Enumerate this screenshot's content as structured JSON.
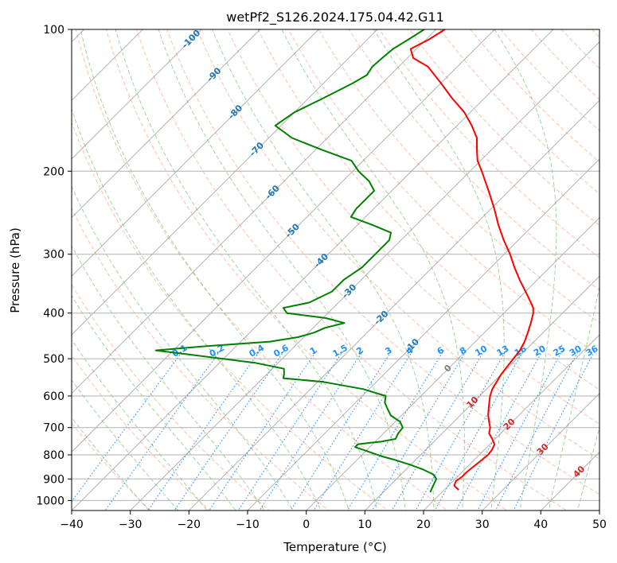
{
  "chart_data": {
    "type": "line",
    "title": "wetPf2_S126.2024.175.04.42.G11",
    "xlabel": "Temperature (°C)",
    "ylabel": "Pressure (hPa)",
    "xlim": [
      -40,
      50
    ],
    "ylim": [
      1050,
      100
    ],
    "y_scale": "log",
    "grid": true,
    "x_ticks": [
      -40,
      -30,
      -20,
      -10,
      0,
      10,
      20,
      30,
      40,
      50
    ],
    "y_ticks": [
      100,
      200,
      300,
      400,
      500,
      600,
      700,
      800,
      900,
      1000
    ],
    "skew_degrees": 45,
    "colors": {
      "temperature": "#ff0000",
      "dewpoint": "#008000",
      "dry_adiabat": "#ff7f50",
      "moist_adiabat": "#2ca02c",
      "mixing_ratio": "#1e90ff",
      "isotherm": "#808080",
      "isotherm_label_cold": "#1f77b4",
      "isotherm_label_warm": "#d62728"
    },
    "isotherm_labels": [
      {
        "t": -100,
        "p": 105,
        "text": "-100",
        "color": "#1f77b4"
      },
      {
        "t": -90,
        "p": 125,
        "text": "-90",
        "color": "#1f77b4"
      },
      {
        "t": -80,
        "p": 150,
        "text": "-80",
        "color": "#1f77b4"
      },
      {
        "t": -70,
        "p": 180,
        "text": "-70",
        "color": "#1f77b4"
      },
      {
        "t": -60,
        "p": 222,
        "text": "-60",
        "color": "#1f77b4"
      },
      {
        "t": -50,
        "p": 268,
        "text": "-50",
        "color": "#1f77b4"
      },
      {
        "t": -40,
        "p": 310,
        "text": "-40",
        "color": "#1f77b4"
      },
      {
        "t": -30,
        "p": 360,
        "text": "-30",
        "color": "#1f77b4"
      },
      {
        "t": -20,
        "p": 410,
        "text": "-20",
        "color": "#1f77b4"
      },
      {
        "t": -10,
        "p": 470,
        "text": "-10",
        "color": "#1f77b4"
      },
      {
        "t": 0,
        "p": 525,
        "text": "0",
        "color": "#808080"
      },
      {
        "t": 10,
        "p": 620,
        "text": "10",
        "color": "#d62728"
      },
      {
        "t": 20,
        "p": 690,
        "text": "20",
        "color": "#d62728"
      },
      {
        "t": 30,
        "p": 780,
        "text": "30",
        "color": "#d62728"
      },
      {
        "t": 40,
        "p": 870,
        "text": "40",
        "color": "#d62728"
      }
    ],
    "mixing_ratio_labels": [
      {
        "w": 0.1,
        "text": "0.1"
      },
      {
        "w": 0.2,
        "text": "0.2"
      },
      {
        "w": 0.4,
        "text": "0.4"
      },
      {
        "w": 0.6,
        "text": "0.6"
      },
      {
        "w": 1,
        "text": "1"
      },
      {
        "w": 1.5,
        "text": "1.5"
      },
      {
        "w": 2,
        "text": "2"
      },
      {
        "w": 3,
        "text": "3"
      },
      {
        "w": 4,
        "text": "4"
      },
      {
        "w": 6,
        "text": "6"
      },
      {
        "w": 8,
        "text": "8"
      },
      {
        "w": 10,
        "text": "10"
      },
      {
        "w": 13,
        "text": "13"
      },
      {
        "w": 16,
        "text": "16"
      },
      {
        "w": 20,
        "text": "20"
      },
      {
        "w": 25,
        "text": "25"
      },
      {
        "w": 30,
        "text": "30"
      },
      {
        "w": 36,
        "text": "36"
      }
    ],
    "series": [
      {
        "key": "temperature",
        "points": [
          [
            950,
            22.5
          ],
          [
            930,
            21.0
          ],
          [
            910,
            20.5
          ],
          [
            890,
            20.8
          ],
          [
            870,
            20.8
          ],
          [
            850,
            21.0
          ],
          [
            820,
            21.3
          ],
          [
            800,
            21.5
          ],
          [
            780,
            21.3
          ],
          [
            760,
            20.8
          ],
          [
            740,
            19.5
          ],
          [
            720,
            18.0
          ],
          [
            700,
            17.2
          ],
          [
            680,
            16.0
          ],
          [
            660,
            14.8
          ],
          [
            640,
            13.8
          ],
          [
            620,
            12.8
          ],
          [
            600,
            11.8
          ],
          [
            580,
            11.0
          ],
          [
            560,
            10.5
          ],
          [
            540,
            10.0
          ],
          [
            520,
            9.7
          ],
          [
            500,
            9.4
          ],
          [
            480,
            9.1
          ],
          [
            460,
            8.4
          ],
          [
            440,
            7.4
          ],
          [
            420,
            6.3
          ],
          [
            400,
            5.0
          ],
          [
            390,
            4.1
          ],
          [
            380,
            2.8
          ],
          [
            360,
            0.0
          ],
          [
            340,
            -3.0
          ],
          [
            320,
            -6.0
          ],
          [
            300,
            -9.0
          ],
          [
            280,
            -12.5
          ],
          [
            260,
            -16.0
          ],
          [
            240,
            -19.5
          ],
          [
            220,
            -23.5
          ],
          [
            200,
            -28.0
          ],
          [
            190,
            -30.5
          ],
          [
            180,
            -32.5
          ],
          [
            170,
            -34.5
          ],
          [
            160,
            -37.5
          ],
          [
            150,
            -41.0
          ],
          [
            140,
            -45.5
          ],
          [
            130,
            -50.0
          ],
          [
            120,
            -55.0
          ],
          [
            115,
            -59.0
          ],
          [
            110,
            -61.0
          ],
          [
            105,
            -59.5
          ],
          [
            100,
            -58.5
          ]
        ]
      },
      {
        "key": "dewpoint",
        "points": [
          [
            960,
            18.0
          ],
          [
            940,
            17.6
          ],
          [
            920,
            17.2
          ],
          [
            900,
            16.8
          ],
          [
            880,
            15.5
          ],
          [
            860,
            13.0
          ],
          [
            840,
            10.0
          ],
          [
            820,
            6.5
          ],
          [
            805,
            3.5
          ],
          [
            790,
            1.0
          ],
          [
            770,
            -2.5
          ],
          [
            760,
            -2.5
          ],
          [
            755,
            -1.0
          ],
          [
            750,
            1.0
          ],
          [
            740,
            3.0
          ],
          [
            720,
            2.5
          ],
          [
            700,
            2.3
          ],
          [
            680,
            0.8
          ],
          [
            660,
            -1.8
          ],
          [
            640,
            -3.4
          ],
          [
            620,
            -5.0
          ],
          [
            600,
            -6.0
          ],
          [
            580,
            -11.0
          ],
          [
            560,
            -19.0
          ],
          [
            550,
            -26.5
          ],
          [
            540,
            -27.0
          ],
          [
            525,
            -28.0
          ],
          [
            510,
            -34.0
          ],
          [
            490,
            -46.5
          ],
          [
            480,
            -53.0
          ],
          [
            470,
            -45.0
          ],
          [
            460,
            -35.0
          ],
          [
            450,
            -31.0
          ],
          [
            440,
            -29.0
          ],
          [
            430,
            -28.0
          ],
          [
            420,
            -25.5
          ],
          [
            410,
            -29.5
          ],
          [
            400,
            -37.0
          ],
          [
            390,
            -38.5
          ],
          [
            380,
            -35.0
          ],
          [
            360,
            -33.0
          ],
          [
            340,
            -33.0
          ],
          [
            320,
            -32.0
          ],
          [
            300,
            -32.0
          ],
          [
            280,
            -32.0
          ],
          [
            270,
            -33.0
          ],
          [
            260,
            -37.5
          ],
          [
            250,
            -42.5
          ],
          [
            240,
            -43.0
          ],
          [
            230,
            -43.0
          ],
          [
            220,
            -43.0
          ],
          [
            210,
            -45.5
          ],
          [
            200,
            -49.0
          ],
          [
            190,
            -52.0
          ],
          [
            180,
            -59.0
          ],
          [
            170,
            -66.0
          ],
          [
            160,
            -71.0
          ],
          [
            150,
            -70.0
          ],
          [
            140,
            -67.5
          ],
          [
            130,
            -65.0
          ],
          [
            125,
            -64.0
          ],
          [
            120,
            -64.5
          ],
          [
            115,
            -64.3
          ],
          [
            110,
            -64.0
          ],
          [
            105,
            -63.0
          ],
          [
            100,
            -62.0
          ]
        ]
      }
    ]
  }
}
